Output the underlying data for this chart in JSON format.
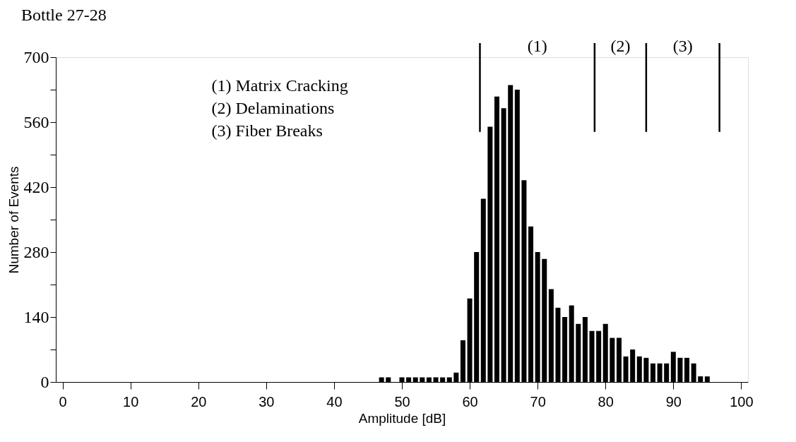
{
  "chart_data": {
    "type": "histogram",
    "title": "Bottle 27-28",
    "xlabel": "Amplitude [dB]",
    "ylabel": "Number of Events",
    "bins": [
      46.5,
      47.5,
      48.5,
      49.5,
      50.5,
      51.5,
      52.5,
      53.5,
      54.5,
      55.5,
      56.5,
      57.5,
      58.5,
      59.5,
      60.5,
      61.5,
      62.5,
      63.5,
      64.5,
      65.5,
      66.5,
      67.5,
      68.5,
      69.5,
      70.5,
      71.5,
      72.5,
      73.5,
      74.5,
      75.5,
      76.5,
      77.5,
      78.5,
      79.5,
      80.5,
      81.5,
      82.5,
      83.5,
      84.5,
      85.5,
      86.5,
      87.5,
      88.5,
      89.5,
      90.5,
      91.5,
      92.5,
      93.5,
      94.5,
      95.5
    ],
    "values": [
      10,
      10,
      0,
      10,
      10,
      10,
      10,
      10,
      10,
      10,
      10,
      20,
      90,
      180,
      280,
      395,
      550,
      615,
      590,
      640,
      630,
      435,
      335,
      280,
      265,
      200,
      160,
      140,
      165,
      125,
      140,
      110,
      110,
      125,
      95,
      95,
      55,
      70,
      55,
      52,
      40,
      40,
      40,
      65,
      52,
      52,
      40,
      12,
      12
    ],
    "color": "#000000",
    "xlim": [
      -1,
      101
    ],
    "xticks": [
      0,
      10,
      20,
      30,
      40,
      50,
      60,
      70,
      80,
      90,
      100
    ],
    "ylim": [
      0,
      700
    ],
    "yticks": [
      0,
      {
        "value": 70,
        "label": null
      },
      140,
      {
        "value": 210,
        "label": null
      },
      280,
      {
        "value": 350,
        "label": null
      },
      420,
      {
        "value": 490,
        "label": null
      },
      560,
      {
        "value": 630,
        "label": null
      },
      700
    ],
    "grid": false,
    "ref_lines": [
      {
        "axis": "x",
        "value": 61.5
      },
      {
        "axis": "x",
        "value": 78.4
      },
      {
        "axis": "x",
        "value": 86
      },
      {
        "axis": "x",
        "value": 96.8
      }
    ],
    "annotations": [
      "(1)",
      "(2)",
      "(3)",
      "(1) Matrix Cracking",
      "(2) Delaminations",
      "(3) Fiber Breaks"
    ]
  }
}
